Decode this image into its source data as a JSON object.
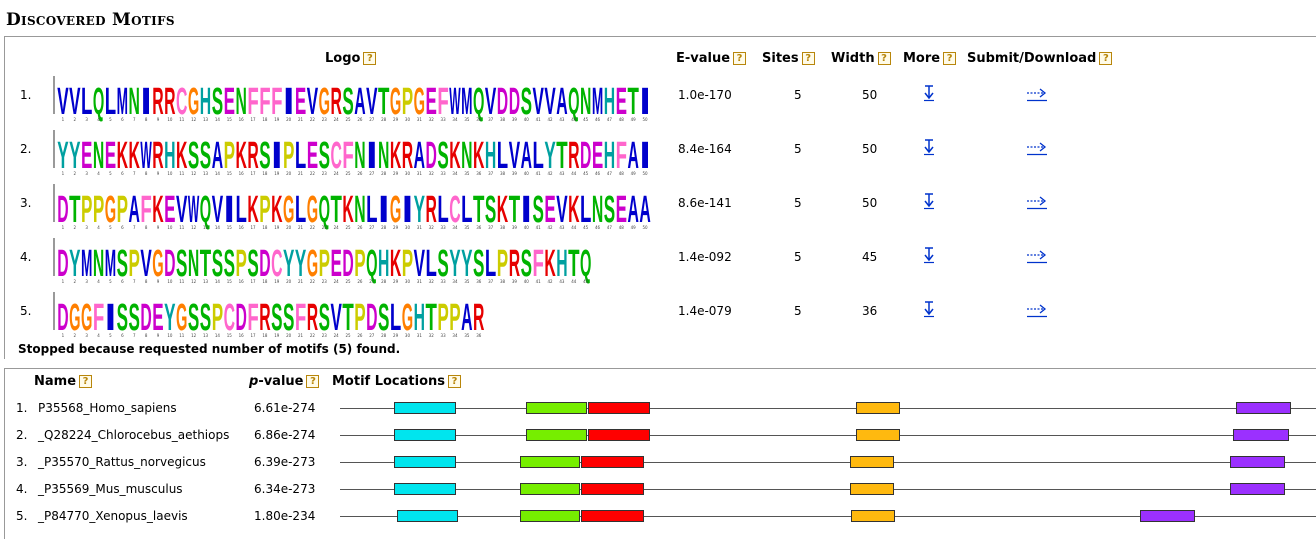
{
  "section_title": "Discovered Motifs",
  "headers": {
    "logo": "Logo",
    "evalue": "E-value",
    "sites": "Sites",
    "width": "Width",
    "more": "More",
    "submit": "Submit/Download",
    "help": "?"
  },
  "motifs": [
    {
      "num": "1.",
      "consensus": "VVLQLMNIRRCGHSENFFFIEVGRSAVTGPGEFWMQVDDSVVAQNMHETI",
      "evalue": "1.0e-170",
      "sites": "5",
      "width": "50"
    },
    {
      "num": "2.",
      "consensus": "YYENEKKWRHKSSAPKRSIPLESCFNINKRADSKNKHLVALYTRDEHFAI",
      "evalue": "8.4e-164",
      "sites": "5",
      "width": "50"
    },
    {
      "num": "3.",
      "consensus": "DTPPGPAFKEVWQVILKPKGLGQTKNLIGIYRLCLTSKTISEVKLNSEAA",
      "evalue": "8.6e-141",
      "sites": "5",
      "width": "50"
    },
    {
      "num": "4.",
      "consensus": "DYMNMSPVGDSNTSSPSDCYYGPEDPQHKPVLSYYSLPRSFKHTQ",
      "evalue": "1.4e-092",
      "sites": "5",
      "width": "45"
    },
    {
      "num": "5.",
      "consensus": "DGGFISSDEYGSSPCDFRSSFRSVTPDSLGHTPPAR",
      "evalue": "1.4e-079",
      "sites": "5",
      "width": "36"
    }
  ],
  "stopped_text": "Stopped because requested number of motifs (5) found.",
  "sites_headers": {
    "name": "Name",
    "pvalue_p": "p",
    "pvalue_rest": "-value",
    "locations": "Motif Locations"
  },
  "motif_colors": [
    "#00e5ee",
    "#76ee00",
    "#ff0000",
    "#ffb90f",
    "#9b30ff"
  ],
  "residue_colors": {
    "hydrophobic": "#0000cc",
    "acidic": "#cc00cc",
    "basic": "#e60000",
    "polar": "#00b300",
    "aromatic": "#00a0a0",
    "small": "#ff7f00",
    "proline": "#cccc00",
    "cysteine": "#ff66cc"
  },
  "sequences": [
    {
      "num": "1.",
      "name": "P35568_Homo_sapiens",
      "pvalue": "6.61e-274"
    },
    {
      "num": "2.",
      "name": "_Q28224_Chlorocebus_aethiops",
      "pvalue": "6.86e-274"
    },
    {
      "num": "3.",
      "name": "_P35570_Rattus_norvegicus",
      "pvalue": "6.39e-273"
    },
    {
      "num": "4.",
      "name": "_P35569_Mus_musculus",
      "pvalue": "6.34e-273"
    },
    {
      "num": "5.",
      "name": "_P84770_Xenopus_laevis",
      "pvalue": "1.80e-234"
    }
  ]
}
